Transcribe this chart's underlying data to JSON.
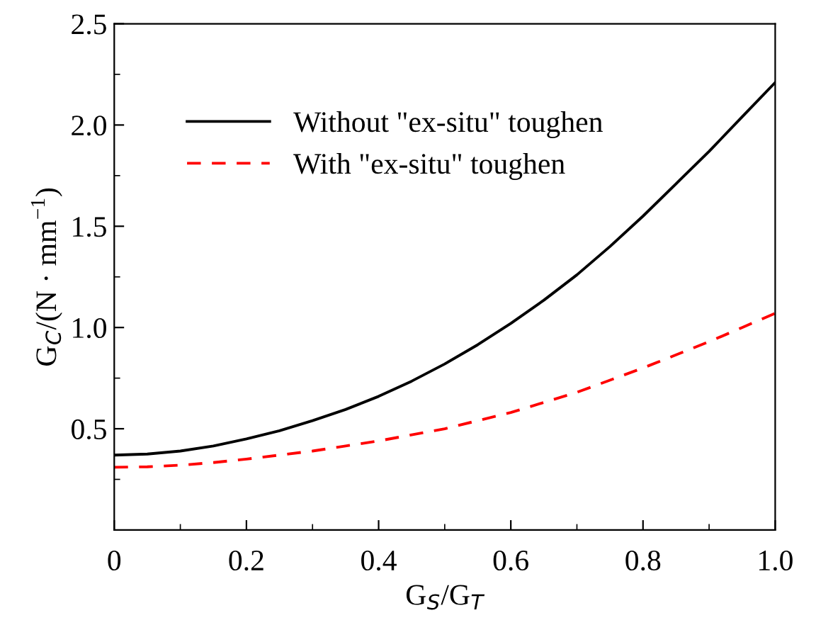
{
  "chart_data": {
    "type": "line",
    "xlabel": "G$_{S}$/G$_{T}$",
    "ylabel": "G$_{C}$/(N · mm$^{−1}$)",
    "x": [
      0,
      0.05,
      0.1,
      0.15,
      0.2,
      0.25,
      0.3,
      0.35,
      0.4,
      0.45,
      0.5,
      0.55,
      0.6,
      0.65,
      0.7,
      0.75,
      0.8,
      0.85,
      0.9,
      0.95,
      1.0
    ],
    "series": [
      {
        "name": "Without \"ex-situ\" toughen",
        "color": "#000000",
        "line_style": "solid",
        "values": [
          0.37,
          0.375,
          0.39,
          0.415,
          0.45,
          0.49,
          0.54,
          0.595,
          0.66,
          0.735,
          0.82,
          0.915,
          1.02,
          1.135,
          1.26,
          1.4,
          1.55,
          1.71,
          1.87,
          2.04,
          2.21
        ]
      },
      {
        "name": "With \"ex-situ\" toughen",
        "color": "#ff0000",
        "line_style": "dashed",
        "values": [
          0.31,
          0.312,
          0.32,
          0.333,
          0.35,
          0.37,
          0.39,
          0.415,
          0.44,
          0.47,
          0.5,
          0.54,
          0.58,
          0.63,
          0.68,
          0.74,
          0.8,
          0.865,
          0.93,
          1.0,
          1.07
        ]
      }
    ],
    "xlim": [
      0,
      1.0
    ],
    "xticks": [
      0,
      0.2,
      0.4,
      0.6,
      0.8,
      {
        "value": 1,
        "label": "1.0"
      }
    ],
    "ylim": [
      0,
      2.5
    ],
    "yticks": [
      0.5,
      {
        "value": 1,
        "label": "1.0"
      },
      1.5,
      {
        "value": 2,
        "label": "2.0"
      },
      2.5
    ],
    "grid": false,
    "legend": "top left",
    "marker": "none"
  }
}
